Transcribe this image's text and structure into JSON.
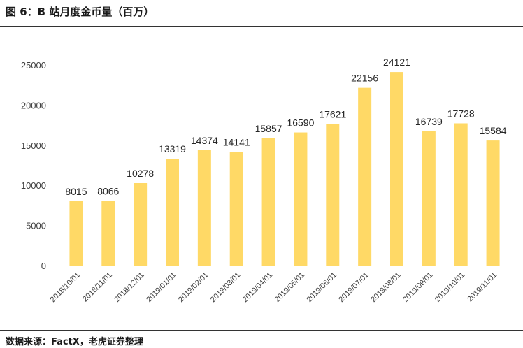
{
  "figure": {
    "title": "图 6：B 站月度金币量（百万）",
    "source": "数据来源：FactX，老虎证券整理"
  },
  "chart_data": {
    "type": "bar",
    "title": "B 站月度金币量（百万）",
    "categories": [
      "2018/10/01",
      "2018/11/01",
      "2018/12/01",
      "2019/01/01",
      "2019/02/01",
      "2019/03/01",
      "2019/04/01",
      "2019/05/01",
      "2019/06/01",
      "2019/07/01",
      "2019/08/01",
      "2019/09/01",
      "2019/10/01",
      "2019/11/01"
    ],
    "values": [
      8015,
      8066,
      10278,
      13319,
      14374,
      14141,
      15857,
      16590,
      17621,
      22156,
      24121,
      16739,
      17728,
      15584
    ],
    "yticks": [
      0,
      5000,
      10000,
      15000,
      20000,
      25000
    ],
    "ylim": [
      0,
      25000
    ],
    "xlabel": "",
    "ylabel": "",
    "grid": false,
    "legend": "none",
    "bar_color": "#FFD966",
    "axis_color": "#D9D9D9"
  }
}
